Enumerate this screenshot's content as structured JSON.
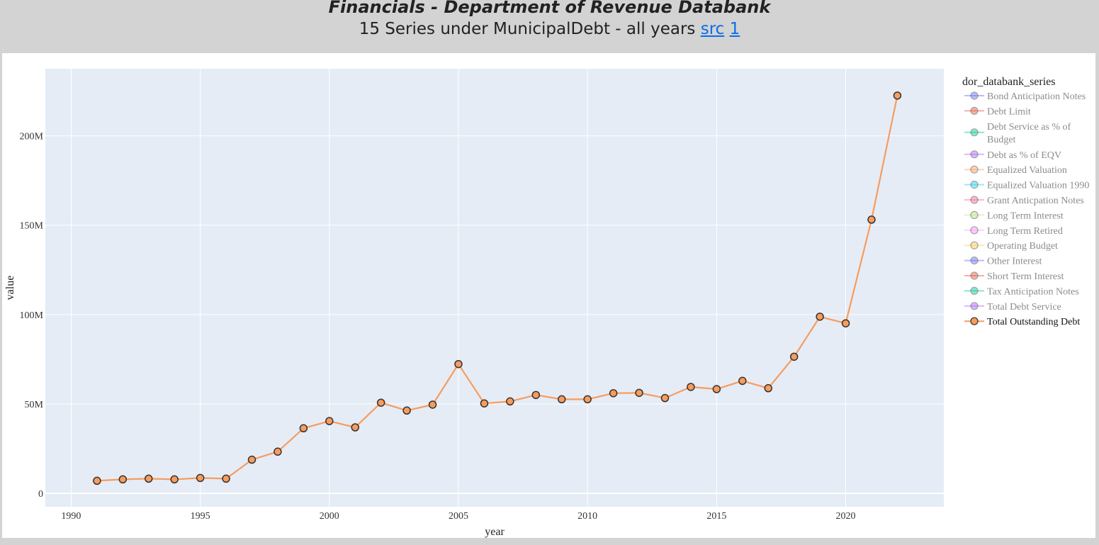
{
  "header": {
    "title": "Financials - Department of Revenue Databank",
    "subtitle_text": "15 Series under MunicipalDebt - all years",
    "link_src": "src",
    "link_1": "1"
  },
  "chart_data": {
    "type": "line",
    "xlabel": "year",
    "ylabel": "value",
    "xlim": [
      1989,
      2023.8
    ],
    "ylim": [
      -7500000,
      237500000
    ],
    "x_ticks": [
      1990,
      1995,
      2000,
      2005,
      2010,
      2015,
      2020
    ],
    "y_ticks": [
      0,
      50000000,
      100000000,
      150000000,
      200000000
    ],
    "y_tick_labels": [
      "0",
      "50M",
      "100M",
      "150M",
      "200M"
    ],
    "grid": true,
    "legend": {
      "title": "dor_databank_series",
      "placement": "right",
      "entries": [
        {
          "label": "Bond Anticipation Notes",
          "color": "#636efa",
          "active": false
        },
        {
          "label": "Debt Limit",
          "color": "#ef553b",
          "active": false
        },
        {
          "label": "Debt Service as % of Budget",
          "color": "#00cc96",
          "active": false
        },
        {
          "label": "Debt as % of EQV",
          "color": "#ab63fa",
          "active": false
        },
        {
          "label": "Equalized Valuation",
          "color": "#ffa15a",
          "active": false
        },
        {
          "label": "Equalized Valuation 1990",
          "color": "#19d3f3",
          "active": false
        },
        {
          "label": "Grant Anticpation Notes",
          "color": "#ff6692",
          "active": false
        },
        {
          "label": "Long Term Interest",
          "color": "#b6e880",
          "active": false
        },
        {
          "label": "Long Term Retired",
          "color": "#ff97ff",
          "active": false
        },
        {
          "label": "Operating Budget",
          "color": "#fecb52",
          "active": false
        },
        {
          "label": "Other Interest",
          "color": "#636efa",
          "active": false
        },
        {
          "label": "Short Term Interest",
          "color": "#ef553b",
          "active": false
        },
        {
          "label": "Tax Anticipation Notes",
          "color": "#00cc96",
          "active": false
        },
        {
          "label": "Total Debt Service",
          "color": "#ab63fa",
          "active": false
        },
        {
          "label": "Total Outstanding Debt",
          "color": "#f79c5d",
          "active": true
        }
      ]
    },
    "series": [
      {
        "name": "Total Outstanding Debt",
        "color": "#f79c5d",
        "x": [
          1991,
          1992,
          1993,
          1994,
          1995,
          1996,
          1997,
          1998,
          1999,
          2000,
          2001,
          2002,
          2003,
          2004,
          2005,
          2006,
          2007,
          2008,
          2009,
          2010,
          2011,
          2012,
          2013,
          2014,
          2015,
          2016,
          2017,
          2018,
          2019,
          2020,
          2021,
          2022
        ],
        "y": [
          7000000,
          7800000,
          8200000,
          7800000,
          8600000,
          8200000,
          18800000,
          23300000,
          36400000,
          40400000,
          36900000,
          50700000,
          46300000,
          49600000,
          72300000,
          50300000,
          51400000,
          55000000,
          52600000,
          52600000,
          56000000,
          56200000,
          53300000,
          59500000,
          58300000,
          62900000,
          58800000,
          76400000,
          98800000,
          95100000,
          153100000,
          222500000
        ]
      }
    ]
  }
}
